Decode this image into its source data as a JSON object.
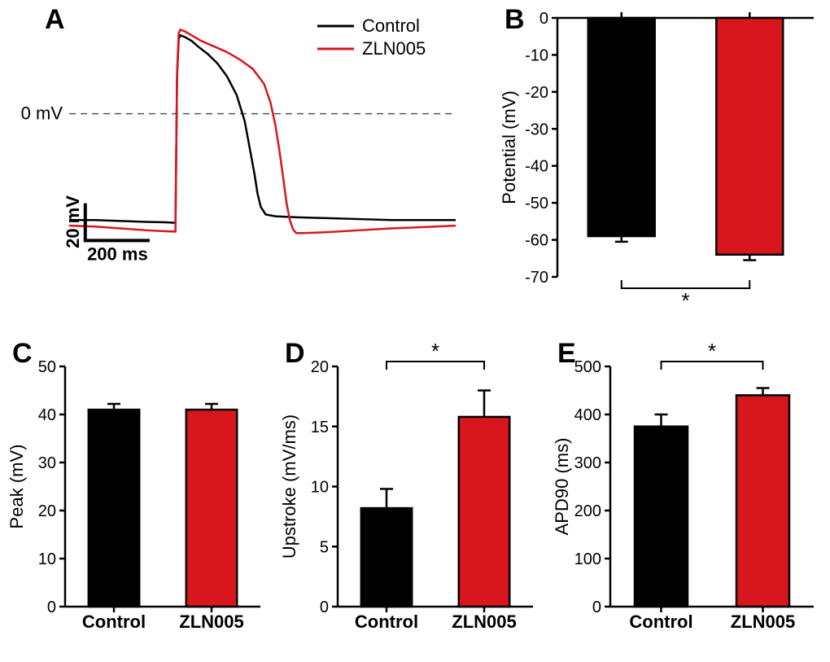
{
  "colors": {
    "control": "#000000",
    "zln005": "#d8161d",
    "axis": "#000000",
    "bg": "#ffffff",
    "dash": "#555555"
  },
  "typography": {
    "panel_label_fontsize": 34,
    "axis_label_fontsize": 22,
    "tick_fontsize": 20,
    "legend_fontsize": 22,
    "category_fontsize": 22,
    "asterisk_fontsize": 26
  },
  "panelA": {
    "label": "A",
    "legend": [
      {
        "name": "Control",
        "color": "#000000"
      },
      {
        "name": "ZLN005",
        "color": "#d8161d"
      }
    ],
    "zero_line_label": "0 mV",
    "scale": {
      "x_label": "200 ms",
      "y_label": "20 mV",
      "x_units": 200,
      "y_units": 20
    },
    "y_range_mv": {
      "min": -70,
      "max": 50
    },
    "x_range_ms": {
      "min": 0,
      "max": 1200
    },
    "traces": {
      "control": [
        [
          0,
          -57
        ],
        [
          80,
          -57
        ],
        [
          160,
          -57.5
        ],
        [
          240,
          -58
        ],
        [
          300,
          -58.2
        ],
        [
          330,
          -58.5
        ],
        [
          335,
          20
        ],
        [
          340,
          40
        ],
        [
          345,
          42
        ],
        [
          360,
          41
        ],
        [
          380,
          39
        ],
        [
          400,
          36
        ],
        [
          430,
          32
        ],
        [
          460,
          27
        ],
        [
          490,
          20
        ],
        [
          520,
          10
        ],
        [
          545,
          -4
        ],
        [
          560,
          -18
        ],
        [
          575,
          -32
        ],
        [
          585,
          -43
        ],
        [
          595,
          -50
        ],
        [
          610,
          -54
        ],
        [
          640,
          -55
        ],
        [
          700,
          -55.5
        ],
        [
          800,
          -56
        ],
        [
          900,
          -56.5
        ],
        [
          1000,
          -57
        ],
        [
          1100,
          -57
        ],
        [
          1200,
          -57
        ]
      ],
      "zln005": [
        [
          0,
          -60
        ],
        [
          80,
          -60.5
        ],
        [
          160,
          -61.5
        ],
        [
          240,
          -62.5
        ],
        [
          300,
          -63
        ],
        [
          330,
          -63.2
        ],
        [
          335,
          22
        ],
        [
          340,
          43
        ],
        [
          345,
          45
        ],
        [
          360,
          44
        ],
        [
          380,
          42
        ],
        [
          410,
          39
        ],
        [
          450,
          36
        ],
        [
          490,
          33
        ],
        [
          530,
          29
        ],
        [
          570,
          24
        ],
        [
          605,
          16
        ],
        [
          625,
          6
        ],
        [
          640,
          -6
        ],
        [
          653,
          -20
        ],
        [
          665,
          -35
        ],
        [
          675,
          -48
        ],
        [
          685,
          -57
        ],
        [
          695,
          -62
        ],
        [
          705,
          -64
        ],
        [
          730,
          -64
        ],
        [
          800,
          -63.5
        ],
        [
          900,
          -62.5
        ],
        [
          1000,
          -61.5
        ],
        [
          1100,
          -60.8
        ],
        [
          1200,
          -60
        ]
      ]
    }
  },
  "panelB": {
    "label": "B",
    "ylabel": "Potential (mV)",
    "ylim": [
      -70,
      0
    ],
    "ytick_step": 10,
    "categories": [
      "Control",
      "ZLN005"
    ],
    "values": [
      -59,
      -64
    ],
    "errors": [
      1.5,
      1.5
    ],
    "bar_colors": [
      "#000000",
      "#d8161d"
    ],
    "bar_width": 0.52,
    "sig_bracket": {
      "groups": [
        0,
        1
      ],
      "label": "*",
      "position": "below"
    }
  },
  "panelC": {
    "label": "C",
    "ylabel": "Peak (mV)",
    "ylim": [
      0,
      50
    ],
    "ytick_step": 10,
    "categories": [
      "Control",
      "ZLN005"
    ],
    "values": [
      41,
      41
    ],
    "errors": [
      1.2,
      1.2
    ],
    "bar_colors": [
      "#000000",
      "#d8161d"
    ],
    "bar_width": 0.52
  },
  "panelD": {
    "label": "D",
    "ylabel": "Upstroke (mV/ms)",
    "ylim": [
      0,
      20
    ],
    "ytick_step": 5,
    "categories": [
      "Control",
      "ZLN005"
    ],
    "values": [
      8.2,
      15.8
    ],
    "errors": [
      1.6,
      2.2
    ],
    "bar_colors": [
      "#000000",
      "#d8161d"
    ],
    "bar_width": 0.52,
    "sig_bracket": {
      "groups": [
        0,
        1
      ],
      "label": "*",
      "position": "above"
    }
  },
  "panelE": {
    "label": "E",
    "ylabel": "APD90 (ms)",
    "ylim": [
      0,
      500
    ],
    "ytick_step": 100,
    "categories": [
      "Control",
      "ZLN005"
    ],
    "values": [
      375,
      440
    ],
    "errors": [
      25,
      15
    ],
    "bar_colors": [
      "#000000",
      "#d8161d"
    ],
    "bar_width": 0.52,
    "sig_bracket": {
      "groups": [
        0,
        1
      ],
      "label": "*",
      "position": "above"
    }
  }
}
